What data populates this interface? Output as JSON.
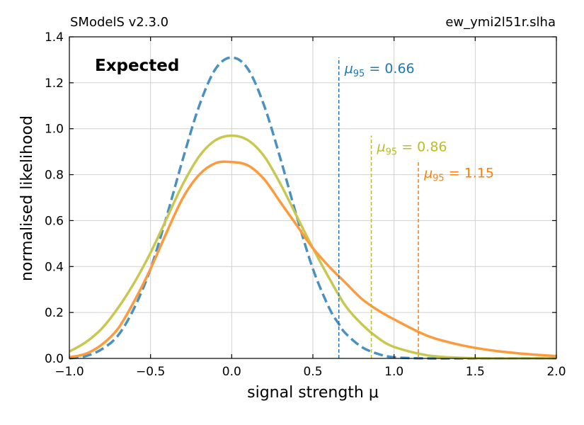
{
  "header": {
    "left": "SModelS v2.3.0",
    "right": "ew_ymi2l51r.slha"
  },
  "chart_data": {
    "type": "line",
    "xlabel": "signal strength μ",
    "ylabel": "normalised likelihood",
    "xlim": [
      -1.0,
      2.0
    ],
    "ylim": [
      0.0,
      1.4
    ],
    "xticks": [
      "−1.0",
      "−0.5",
      "0.0",
      "0.5",
      "1.0",
      "1.5",
      "2.0"
    ],
    "yticks": [
      "0.0",
      "0.2",
      "0.4",
      "0.6",
      "0.8",
      "1.0",
      "1.2",
      "1.4"
    ],
    "grid": true,
    "annotation": "Expected",
    "series": [
      {
        "style": "dashed",
        "color": "#4a90c0",
        "x": [
          -1.0,
          -0.9,
          -0.8,
          -0.7,
          -0.6,
          -0.5,
          -0.4,
          -0.3,
          -0.2,
          -0.1,
          0.0,
          0.1,
          0.2,
          0.3,
          0.4,
          0.5,
          0.6,
          0.66,
          0.7,
          0.8,
          0.9,
          1.0,
          1.2,
          1.4,
          1.6,
          1.8,
          2.0
        ],
        "y": [
          0.0,
          0.01,
          0.04,
          0.1,
          0.22,
          0.39,
          0.62,
          0.87,
          1.1,
          1.26,
          1.31,
          1.26,
          1.1,
          0.87,
          0.62,
          0.39,
          0.22,
          0.15,
          0.11,
          0.05,
          0.02,
          0.005,
          0.0,
          0.0,
          0.0,
          0.0,
          0.0
        ],
        "mu95": 0.66,
        "mu95_label": "= 0.66",
        "label_color": "#1f77b4"
      },
      {
        "style": "solid",
        "color": "#c8c850",
        "x": [
          -1.0,
          -0.9,
          -0.8,
          -0.7,
          -0.6,
          -0.5,
          -0.4,
          -0.3,
          -0.2,
          -0.1,
          0.0,
          0.1,
          0.2,
          0.3,
          0.4,
          0.5,
          0.6,
          0.7,
          0.8,
          0.9,
          1.0,
          1.2,
          1.4,
          1.6,
          1.8,
          2.0
        ],
        "y": [
          0.03,
          0.07,
          0.13,
          0.22,
          0.33,
          0.46,
          0.61,
          0.76,
          0.88,
          0.95,
          0.97,
          0.95,
          0.88,
          0.76,
          0.62,
          0.48,
          0.35,
          0.23,
          0.15,
          0.09,
          0.05,
          0.014,
          0.003,
          0.0,
          0.0,
          0.0
        ],
        "mu95": 0.86,
        "mu95_label": "= 0.86",
        "label_color": "#bcbd22"
      },
      {
        "style": "solid",
        "color": "#ff9a3c",
        "x": [
          -1.0,
          -0.9,
          -0.8,
          -0.7,
          -0.6,
          -0.5,
          -0.4,
          -0.3,
          -0.2,
          -0.1,
          0.0,
          0.1,
          0.2,
          0.3,
          0.4,
          0.5,
          0.6,
          0.7,
          0.8,
          0.9,
          1.0,
          1.2,
          1.4,
          1.6,
          1.8,
          2.0
        ],
        "y": [
          0.005,
          0.02,
          0.06,
          0.13,
          0.25,
          0.39,
          0.55,
          0.7,
          0.8,
          0.85,
          0.855,
          0.84,
          0.78,
          0.68,
          0.58,
          0.48,
          0.4,
          0.33,
          0.26,
          0.21,
          0.17,
          0.1,
          0.06,
          0.035,
          0.02,
          0.01
        ],
        "mu95": 1.15,
        "mu95_label": "= 1.15",
        "label_color": "#ff7f0e"
      }
    ]
  }
}
